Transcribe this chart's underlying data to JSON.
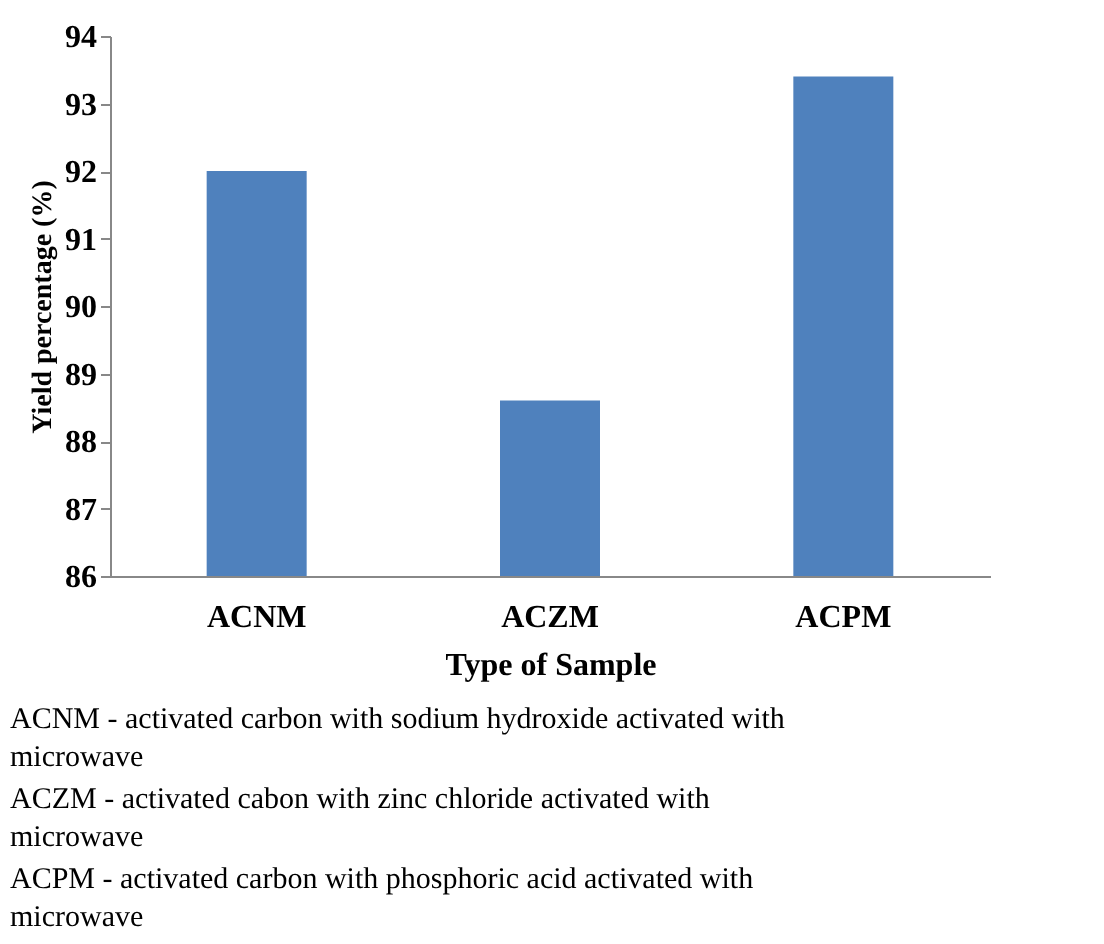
{
  "chart_data": {
    "type": "bar",
    "xlabel": "Type of Sample",
    "ylabel": "Yield percentage (%)",
    "categories": [
      "ACNM",
      "ACZM",
      "ACPM"
    ],
    "values": [
      92.0,
      88.6,
      93.4
    ],
    "color": "#4f81bd",
    "ylim": [
      86,
      94
    ],
    "yticks": [
      86,
      87,
      88,
      89,
      90,
      91,
      92,
      93,
      94
    ],
    "grid": false,
    "annotations": [
      "ACNM - activated carbon with sodium hydroxide activated with microwave",
      "ACZM - activated cabon with zinc chloride activated with microwave",
      "ACPM - activated carbon with phosphoric acid activated with microwave"
    ]
  }
}
